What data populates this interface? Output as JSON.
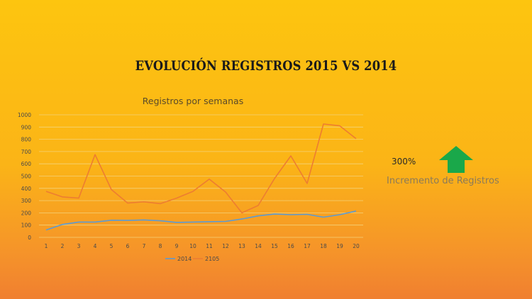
{
  "slide_title": "EVOLUCIÓN REGISTROS 2015 VS 2014",
  "increment": {
    "value": "300%",
    "label": "Incremento de Registros",
    "arrow_icon": "up-arrow-icon",
    "arrow_color": "#1aa84a"
  },
  "chart_data": {
    "type": "line",
    "title": "Registros por semanas",
    "x": [
      1,
      2,
      3,
      4,
      5,
      6,
      7,
      8,
      9,
      10,
      11,
      12,
      13,
      14,
      15,
      16,
      17,
      18,
      19,
      20
    ],
    "ylim": [
      0,
      1000
    ],
    "yticks": [
      0,
      100,
      200,
      300,
      400,
      500,
      600,
      700,
      800,
      900,
      1000
    ],
    "grid": true,
    "legend_position": "bottom",
    "series": [
      {
        "name": "2014",
        "color": "#5b9bd5",
        "values": [
          60,
          105,
          125,
          125,
          140,
          138,
          142,
          135,
          122,
          125,
          128,
          130,
          150,
          175,
          190,
          185,
          188,
          165,
          185,
          215
        ]
      },
      {
        "name": "2105",
        "color": "#ed7d31",
        "values": [
          375,
          330,
          320,
          675,
          390,
          280,
          290,
          275,
          320,
          375,
          475,
          370,
          200,
          260,
          480,
          665,
          440,
          925,
          910,
          805
        ]
      }
    ]
  }
}
